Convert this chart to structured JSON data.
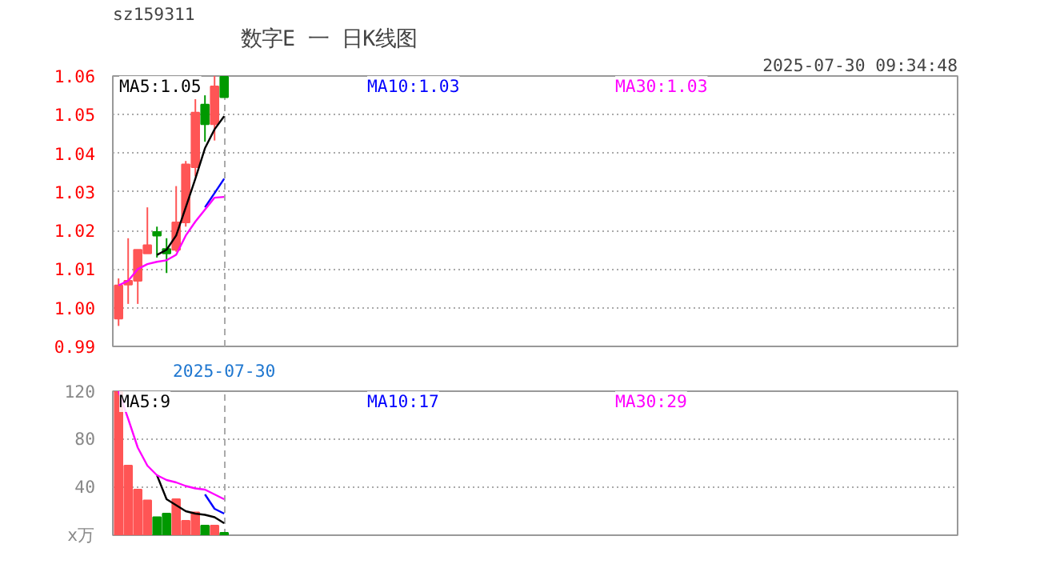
{
  "chart_data": [
    {
      "type": "candlestick",
      "title": "数字E 一 日K线图",
      "subtitle": "sz159311",
      "annotations": [
        "2025-07-30 09:34:48"
      ],
      "categories": [
        null,
        null,
        null,
        null,
        null,
        null,
        null,
        null,
        null,
        null,
        null,
        "2025-07-30"
      ],
      "ohlc": [
        [
          0.9972,
          1.0076,
          0.9953,
          1.0058
        ],
        [
          1.006,
          1.018,
          1.001,
          1.007
        ],
        [
          1.007,
          1.015,
          1.001,
          1.015
        ],
        [
          1.0141,
          1.026,
          1.0141,
          1.0162
        ],
        [
          1.0196,
          1.021,
          1.013,
          1.0187
        ],
        [
          1.0152,
          1.018,
          1.009,
          1.0141
        ],
        [
          1.015,
          1.0315,
          1.0145,
          1.0221
        ],
        [
          1.0221,
          1.038,
          1.021,
          1.0371
        ],
        [
          1.0364,
          1.054,
          1.034,
          1.0505
        ],
        [
          1.0526,
          1.055,
          1.043,
          1.0475
        ],
        [
          1.0475,
          1.06,
          1.0433,
          1.0573
        ],
        [
          1.0598,
          1.0598,
          1.0545,
          1.0545
        ]
      ],
      "colors": [
        "#ff5555",
        "#ff5555",
        "#ff5555",
        "#ff5555",
        "#009900",
        "#009900",
        "#ff5555",
        "#ff5555",
        "#ff5555",
        "#009900",
        "#ff5555",
        "#009900"
      ],
      "series": [
        {
          "type": "line",
          "name": "MA5:1.05",
          "color": "#000000",
          "values": [
            null,
            null,
            null,
            null,
            1.0137,
            1.015,
            1.0187,
            1.026,
            1.0334,
            1.0413,
            1.0462,
            1.0496
          ]
        },
        {
          "type": "line",
          "name": "MA10:1.03",
          "color": "#0000ff",
          "values": [
            null,
            null,
            null,
            null,
            null,
            null,
            null,
            null,
            null,
            1.026,
            1.0297,
            1.0334
          ]
        },
        {
          "type": "line",
          "name": "MA30:1.03",
          "color": "#ff00ff",
          "values": [
            1.0058,
            1.007,
            1.01,
            1.0113,
            1.0119,
            1.0123,
            1.0137,
            1.0187,
            1.0223,
            1.0254,
            1.0285,
            1.0287
          ]
        }
      ],
      "ylim": [
        0.99,
        1.06
      ],
      "yticks": [
        0.99,
        {
          "value": 1.0,
          "label": "1.00"
        },
        1.01,
        1.02,
        1.03,
        1.04,
        1.05,
        1.06
      ],
      "grid": true,
      "legend": "top"
    },
    {
      "type": "bar",
      "categories": [
        null,
        null,
        null,
        null,
        null,
        null,
        null,
        null,
        null,
        null,
        null,
        null
      ],
      "values": [
        120,
        58,
        38,
        29,
        15,
        18,
        30,
        12,
        19,
        8,
        8,
        2
      ],
      "colors": [
        "#ff5555",
        "#ff5555",
        "#ff5555",
        "#ff5555",
        "#009900",
        "#009900",
        "#ff5555",
        "#ff5555",
        "#ff5555",
        "#009900",
        "#ff5555",
        "#009900"
      ],
      "series": [
        {
          "type": "line",
          "name": "MA5:9",
          "color": "#000000",
          "values": [
            null,
            null,
            null,
            null,
            50,
            30,
            25,
            20,
            18,
            17,
            15,
            10
          ]
        },
        {
          "type": "line",
          "name": "MA10:17",
          "color": "#0000ff",
          "values": [
            null,
            null,
            null,
            null,
            null,
            null,
            null,
            null,
            null,
            34,
            22,
            18
          ]
        },
        {
          "type": "line",
          "name": "MA30:29",
          "color": "#ff00ff",
          "values": [
            120,
            97,
            73,
            58,
            50,
            46,
            44,
            41,
            39,
            38,
            34,
            30
          ]
        }
      ],
      "ylim": [
        0,
        120
      ],
      "yticks": [
        {
          "value": 0,
          "label": "x万"
        },
        40,
        80,
        120
      ],
      "tick_labels": "y",
      "grid": true,
      "legend": "top"
    }
  ]
}
